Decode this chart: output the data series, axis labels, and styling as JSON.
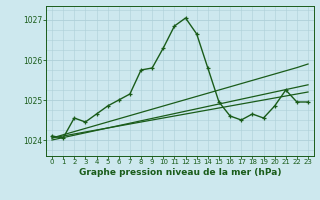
{
  "title": "Graphe pression niveau de la mer (hPa)",
  "background_color": "#cde8ee",
  "grid_color": "#aed0d8",
  "line_color": "#1a5c1a",
  "x_hours": [
    0,
    1,
    2,
    3,
    4,
    5,
    6,
    7,
    8,
    9,
    10,
    11,
    12,
    13,
    14,
    15,
    16,
    17,
    18,
    19,
    20,
    21,
    22,
    23
  ],
  "pressure_main": [
    1024.1,
    1024.05,
    1024.55,
    1024.45,
    1024.65,
    1024.85,
    1025.0,
    1025.15,
    1025.75,
    1025.8,
    1026.3,
    1026.85,
    1027.05,
    1026.65,
    1025.8,
    1024.95,
    1024.6,
    1024.5,
    1024.65,
    1024.55,
    1024.85,
    1025.25,
    1024.95,
    1024.95
  ],
  "trend_line1": [
    1024.05,
    1024.13,
    1024.21,
    1024.29,
    1024.37,
    1024.45,
    1024.53,
    1024.61,
    1024.69,
    1024.77,
    1024.85,
    1024.93,
    1025.01,
    1025.09,
    1025.17,
    1025.25,
    1025.33,
    1025.41,
    1025.49,
    1025.57,
    1025.65,
    1025.73,
    1025.81,
    1025.9
  ],
  "trend_line2": [
    1024.05,
    1024.1,
    1024.15,
    1024.2,
    1024.25,
    1024.3,
    1024.35,
    1024.4,
    1024.45,
    1024.5,
    1024.55,
    1024.6,
    1024.65,
    1024.7,
    1024.75,
    1024.8,
    1024.85,
    1024.9,
    1024.95,
    1025.0,
    1025.05,
    1025.1,
    1025.15,
    1025.2
  ],
  "trend_line3": [
    1024.0,
    1024.06,
    1024.12,
    1024.18,
    1024.24,
    1024.3,
    1024.36,
    1024.42,
    1024.48,
    1024.54,
    1024.6,
    1024.66,
    1024.72,
    1024.78,
    1024.84,
    1024.9,
    1024.96,
    1025.02,
    1025.08,
    1025.14,
    1025.2,
    1025.26,
    1025.32,
    1025.38
  ],
  "ylim": [
    1023.6,
    1027.35
  ],
  "yticks": [
    1024,
    1025,
    1026,
    1027
  ],
  "title_fontsize": 6.5
}
